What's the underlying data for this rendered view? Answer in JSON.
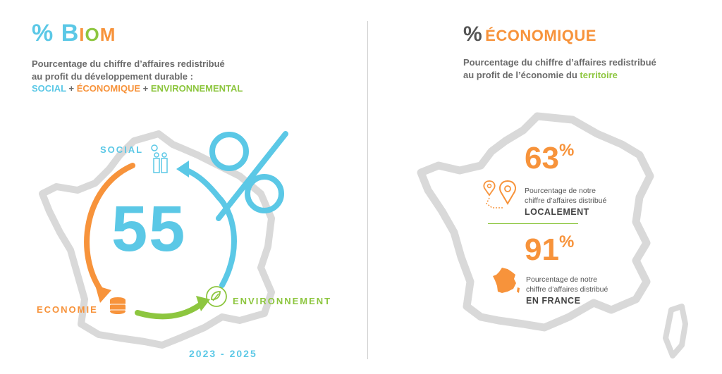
{
  "left": {
    "title_pct": "%",
    "title_letters": [
      "B",
      "I",
      "O",
      "M"
    ],
    "title_colors": [
      "#5bc8e6",
      "#f7933b",
      "#8dc63f",
      "#f7933b"
    ],
    "subtitle_line1": "Pourcentage du chiffre d’affaires redistribué",
    "subtitle_line2": "au profit du développement durable :",
    "cat_social": "SOCIAL",
    "plus1": "+",
    "cat_eco": "ÉCONOMIQUE",
    "plus2": "+",
    "cat_env": "ENVIRONNEMENTAL",
    "big_value": "55",
    "label_social": "SOCIAL",
    "label_economie": "ECONOMIE",
    "label_env": "ENVIRONNEMENT",
    "years": "2023 - 2025"
  },
  "right": {
    "title_pct": "%",
    "title_word": "ÉCONOMIQUE",
    "subtitle_line1": "Pourcentage du chiffre d’affaires redistribué",
    "subtitle_line2_a": "au profit  de l’économie du",
    "subtitle_line2_b": "territoire",
    "local_value": "63",
    "local_pct": "%",
    "local_desc1": "Pourcentage de notre",
    "local_desc2": "chiffre d’affaires distribué",
    "local_label": "LOCALEMENT",
    "france_value": "91",
    "france_pct": "%",
    "france_desc1": "Pourcentage de notre",
    "france_desc2": "chiffre d’affaires distribué",
    "france_label": "EN FRANCE"
  },
  "colors": {
    "blue": "#5bc8e6",
    "orange": "#f7933b",
    "green": "#8dc63f",
    "gray_map": "#d9d9d9",
    "text_gray": "#6b6b6b"
  }
}
